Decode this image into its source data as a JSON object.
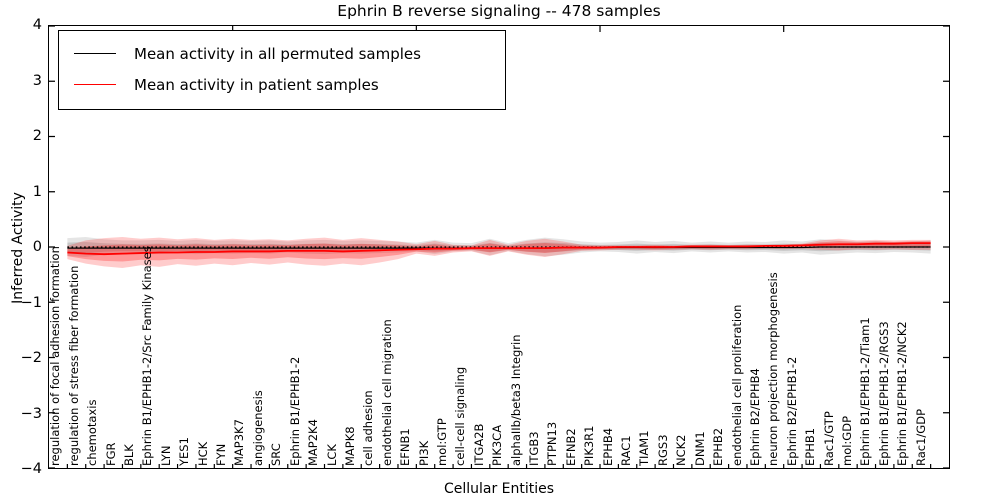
{
  "legend": {
    "items": [
      {
        "label": "Mean activity in all permuted samples",
        "color": "#000000"
      },
      {
        "label": "Mean activity in patient samples",
        "color": "#ff0000"
      }
    ]
  },
  "chart_data": {
    "type": "line",
    "title": "Ephrin B reverse signaling -- 478 samples",
    "xlabel": "Cellular Entities",
    "ylabel": "Inferred Activity",
    "ylim": [
      -4,
      4
    ],
    "ytick_values": [
      4,
      3,
      2,
      1,
      0,
      -1,
      -2,
      -3,
      -4
    ],
    "ytick_labels": [
      "4",
      "3",
      "2",
      "1",
      "0",
      "−1",
      "−2",
      "−3",
      "−4"
    ],
    "top_axis_ticks_at": [
      10,
      20,
      30,
      40
    ],
    "grid": false,
    "legend_position": "upper left",
    "zero_line": {
      "y": 0,
      "style": "dotted",
      "color": "#000000"
    },
    "categories": [
      "regulation of focal adhesion formation",
      "regulation of stress fiber formation",
      "chemotaxis",
      "FGR",
      "BLK",
      "Ephrin B1/EPHB1-2/Src Family Kinases",
      "LYN",
      "YES1",
      "HCK",
      "FYN",
      "MAP3K7",
      "angiogenesis",
      "SRC",
      "Ephrin B1/EPHB1-2",
      "MAP2K4",
      "LCK",
      "MAPK8",
      "cell adhesion",
      "endothelial cell migration",
      "EFNB1",
      "PI3K",
      "mol:GTP",
      "cell-cell signaling",
      "ITGA2B",
      "PIK3CA",
      "alphaIIb/beta3 Integrin",
      "ITGB3",
      "PTPN13",
      "EFNB2",
      "PIK3R1",
      "EPHB4",
      "RAC1",
      "TIAM1",
      "RGS3",
      "NCK2",
      "DNM1",
      "EPHB2",
      "endothelial cell proliferation",
      "Ephrin B2/EPHB4",
      "neuron projection morphogenesis",
      "Ephrin B2/EPHB1-2",
      "EPHB1",
      "Rac1/GTP",
      "mol:GDP",
      "Ephrin B1/EPHB1-2/Tiam1",
      "Ephrin B1/EPHB1-2/RGS3",
      "Ephrin B1/EPHB1-2/NCK2",
      "Rac1/GDP"
    ],
    "series": [
      {
        "name": "Mean activity in all permuted samples",
        "color": "#000000",
        "band_color": "#000000",
        "mean": [
          -0.02,
          -0.02,
          -0.02,
          -0.02,
          -0.02,
          -0.02,
          -0.02,
          -0.02,
          -0.02,
          -0.02,
          -0.02,
          -0.02,
          -0.02,
          -0.02,
          -0.02,
          -0.02,
          -0.02,
          -0.02,
          -0.02,
          -0.02,
          -0.02,
          -0.02,
          -0.02,
          -0.02,
          -0.02,
          -0.02,
          -0.02,
          -0.01,
          -0.01,
          -0.01,
          -0.01,
          -0.01,
          -0.01,
          -0.01,
          -0.01,
          -0.01,
          -0.01,
          -0.01,
          -0.01,
          -0.01,
          -0.01,
          0.0,
          0.0,
          0.0,
          0.0,
          0.0,
          0.0,
          0.0
        ],
        "upper": [
          0.16,
          0.18,
          0.14,
          0.12,
          0.12,
          0.13,
          0.11,
          0.13,
          0.11,
          0.12,
          0.11,
          0.12,
          0.1,
          0.12,
          0.13,
          0.11,
          0.12,
          0.11,
          0.1,
          0.08,
          0.13,
          0.08,
          0.07,
          0.15,
          0.07,
          0.13,
          0.17,
          0.14,
          0.1,
          0.08,
          0.09,
          0.12,
          0.09,
          0.11,
          0.08,
          0.1,
          0.08,
          0.1,
          0.09,
          0.12,
          0.1,
          0.14,
          0.12,
          0.1,
          0.11,
          0.09,
          0.1,
          0.12
        ],
        "lower": [
          -0.16,
          -0.18,
          -0.14,
          -0.12,
          -0.12,
          -0.13,
          -0.11,
          -0.13,
          -0.11,
          -0.12,
          -0.11,
          -0.12,
          -0.1,
          -0.12,
          -0.13,
          -0.11,
          -0.12,
          -0.11,
          -0.1,
          -0.08,
          -0.13,
          -0.08,
          -0.07,
          -0.15,
          -0.07,
          -0.13,
          -0.17,
          -0.14,
          -0.1,
          -0.08,
          -0.09,
          -0.12,
          -0.09,
          -0.11,
          -0.08,
          -0.1,
          -0.08,
          -0.1,
          -0.09,
          -0.12,
          -0.1,
          -0.14,
          -0.12,
          -0.1,
          -0.11,
          -0.09,
          -0.1,
          -0.12
        ]
      },
      {
        "name": "Mean activity in patient samples",
        "color": "#ff0000",
        "band_color": "#ff0000",
        "mean": [
          -0.1,
          -0.12,
          -0.13,
          -0.12,
          -0.11,
          -0.1,
          -0.1,
          -0.09,
          -0.09,
          -0.08,
          -0.08,
          -0.08,
          -0.07,
          -0.07,
          -0.07,
          -0.08,
          -0.07,
          -0.06,
          -0.05,
          -0.04,
          -0.03,
          -0.03,
          -0.02,
          -0.02,
          -0.02,
          -0.02,
          -0.02,
          -0.01,
          -0.01,
          -0.01,
          0.0,
          0.0,
          0.0,
          0.0,
          0.01,
          0.01,
          0.01,
          0.01,
          0.02,
          0.02,
          0.03,
          0.04,
          0.05,
          0.05,
          0.06,
          0.06,
          0.07,
          0.07
        ],
        "upper": [
          0.02,
          0.12,
          0.16,
          0.18,
          0.15,
          0.17,
          0.14,
          0.16,
          0.13,
          0.15,
          0.13,
          0.14,
          0.12,
          0.15,
          0.17,
          0.13,
          0.16,
          0.13,
          0.1,
          0.05,
          0.11,
          0.04,
          0.03,
          0.13,
          0.04,
          0.11,
          0.15,
          0.1,
          0.04,
          0.03,
          0.03,
          0.03,
          0.04,
          0.03,
          0.04,
          0.04,
          0.03,
          0.04,
          0.04,
          0.05,
          0.06,
          0.12,
          0.15,
          0.12,
          0.13,
          0.12,
          0.13,
          0.13
        ],
        "lower": [
          -0.22,
          -0.3,
          -0.35,
          -0.38,
          -0.33,
          -0.36,
          -0.31,
          -0.34,
          -0.3,
          -0.33,
          -0.29,
          -0.32,
          -0.28,
          -0.32,
          -0.34,
          -0.3,
          -0.33,
          -0.28,
          -0.22,
          -0.12,
          -0.16,
          -0.1,
          -0.08,
          -0.16,
          -0.08,
          -0.14,
          -0.18,
          -0.13,
          -0.07,
          -0.06,
          -0.05,
          -0.05,
          -0.06,
          -0.05,
          -0.04,
          -0.05,
          -0.04,
          -0.04,
          -0.03,
          -0.04,
          -0.03,
          -0.05,
          -0.06,
          -0.04,
          -0.05,
          -0.04,
          -0.05,
          -0.05
        ]
      }
    ]
  }
}
